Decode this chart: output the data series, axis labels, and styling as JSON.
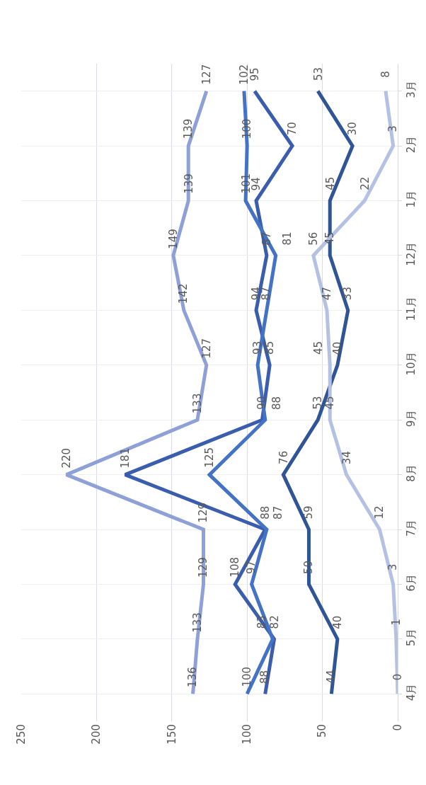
{
  "chart_data": {
    "type": "line",
    "categories": [
      "3月",
      "2月",
      "1月",
      "12月",
      "11月",
      "10月",
      "9月",
      "8月",
      "7月",
      "6月",
      "5月",
      "4月"
    ],
    "series": [
      {
        "color": "#8ea0d6",
        "values": [
          127,
          139,
          139,
          149,
          142,
          127,
          133,
          220,
          129,
          129,
          133,
          136
        ]
      },
      {
        "color": "#3a5dae",
        "values": [
          95,
          70,
          94,
          87,
          94,
          85,
          90,
          181,
          88,
          108,
          82,
          88
        ]
      },
      {
        "color": "#4472c4",
        "values": [
          102,
          100,
          101,
          81,
          87,
          93,
          88,
          125,
          87,
          97,
          83,
          100
        ]
      },
      {
        "color": "#2f5597",
        "values": [
          53,
          30,
          45,
          45,
          33,
          40,
          53,
          76,
          59,
          59,
          40,
          44
        ]
      },
      {
        "color": "#b4c1e3",
        "values": [
          8,
          3,
          22,
          56,
          47,
          45,
          45,
          34,
          12,
          3,
          1,
          0
        ]
      }
    ],
    "orientation": "horizontal",
    "xlim": [
      250,
      0
    ],
    "xticks": [
      0,
      50,
      100,
      150,
      200,
      250
    ],
    "grid": true,
    "data_labels": true,
    "marker": "none",
    "line_style": "solid",
    "legend": false
  }
}
